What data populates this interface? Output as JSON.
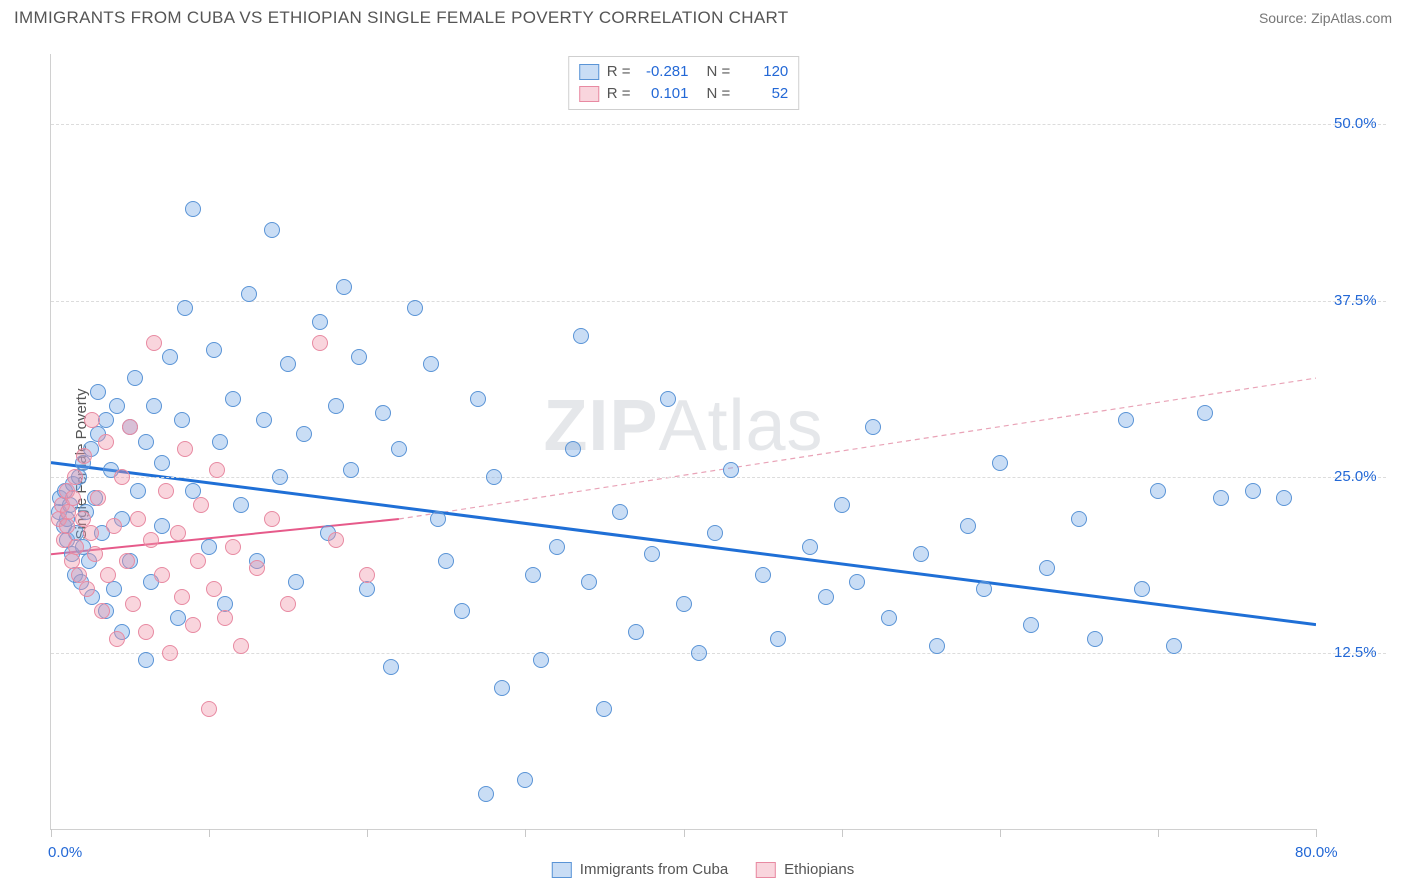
{
  "title": "IMMIGRANTS FROM CUBA VS ETHIOPIAN SINGLE FEMALE POVERTY CORRELATION CHART",
  "source_label": "Source: ZipAtlas.com",
  "ylabel": "Single Female Poverty",
  "watermark_a": "ZIP",
  "watermark_b": "Atlas",
  "chart": {
    "type": "scatter",
    "background_color": "#ffffff",
    "grid_color": "#dcdcdc",
    "axis_color": "#d0d0d0",
    "xlim": [
      0,
      80
    ],
    "ylim": [
      0,
      55
    ],
    "xmin_label": "0.0%",
    "xmax_label": "80.0%",
    "xlabel_color": "#2368d6",
    "y_gridlines": [
      12.5,
      25.0,
      37.5,
      50.0
    ],
    "y_tick_labels": [
      "12.5%",
      "25.0%",
      "37.5%",
      "50.0%"
    ],
    "ylabel_color": "#2368d6",
    "x_ticks": [
      0,
      10,
      20,
      30,
      40,
      50,
      60,
      70,
      80
    ],
    "marker_radius": 8,
    "marker_border_width": 1,
    "series": [
      {
        "key": "cuba",
        "label": "Immigrants from Cuba",
        "fill": "rgba(120,170,230,0.40)",
        "stroke": "#5a94d6",
        "R": "-0.281",
        "N": "120",
        "trend": {
          "x1": 0,
          "y1": 26,
          "x2": 80,
          "y2": 14.5,
          "color": "#1f6fd6",
          "width": 3,
          "dash": "none"
        },
        "trend_ext": null,
        "points": [
          [
            0.5,
            22.5
          ],
          [
            0.6,
            23.5
          ],
          [
            0.8,
            21.5
          ],
          [
            0.9,
            24
          ],
          [
            1,
            22
          ],
          [
            1,
            20.5
          ],
          [
            1.2,
            23
          ],
          [
            1.3,
            19.5
          ],
          [
            1.4,
            24.5
          ],
          [
            1.5,
            18
          ],
          [
            1.6,
            21
          ],
          [
            1.8,
            25
          ],
          [
            1.9,
            17.5
          ],
          [
            2,
            26
          ],
          [
            2,
            20
          ],
          [
            2.2,
            22.5
          ],
          [
            2.4,
            19
          ],
          [
            2.5,
            27
          ],
          [
            2.6,
            16.5
          ],
          [
            2.8,
            23.5
          ],
          [
            3,
            28
          ],
          [
            3,
            31
          ],
          [
            3.2,
            21
          ],
          [
            3.5,
            29
          ],
          [
            3.5,
            15.5
          ],
          [
            3.8,
            25.5
          ],
          [
            4,
            17
          ],
          [
            4.2,
            30
          ],
          [
            4.5,
            22
          ],
          [
            4.5,
            14
          ],
          [
            5,
            28.5
          ],
          [
            5,
            19
          ],
          [
            5.3,
            32
          ],
          [
            5.5,
            24
          ],
          [
            6,
            27.5
          ],
          [
            6,
            12
          ],
          [
            6.3,
            17.5
          ],
          [
            6.5,
            30
          ],
          [
            7,
            21.5
          ],
          [
            7,
            26
          ],
          [
            7.5,
            33.5
          ],
          [
            8,
            15
          ],
          [
            8.3,
            29
          ],
          [
            8.5,
            37
          ],
          [
            9,
            24
          ],
          [
            9,
            44
          ],
          [
            10,
            20
          ],
          [
            10.3,
            34
          ],
          [
            10.7,
            27.5
          ],
          [
            11,
            16
          ],
          [
            11.5,
            30.5
          ],
          [
            12,
            23
          ],
          [
            12.5,
            38
          ],
          [
            13,
            19
          ],
          [
            13.5,
            29
          ],
          [
            14,
            42.5
          ],
          [
            14.5,
            25
          ],
          [
            15,
            33
          ],
          [
            15.5,
            17.5
          ],
          [
            16,
            28
          ],
          [
            17,
            36
          ],
          [
            17.5,
            21
          ],
          [
            18,
            30
          ],
          [
            18.5,
            38.5
          ],
          [
            19,
            25.5
          ],
          [
            19.5,
            33.5
          ],
          [
            20,
            17
          ],
          [
            21,
            29.5
          ],
          [
            21.5,
            11.5
          ],
          [
            22,
            27
          ],
          [
            23,
            37
          ],
          [
            24,
            33
          ],
          [
            24.5,
            22
          ],
          [
            25,
            19
          ],
          [
            26,
            15.5
          ],
          [
            27,
            30.5
          ],
          [
            27.5,
            2.5
          ],
          [
            28,
            25
          ],
          [
            28.5,
            10
          ],
          [
            30,
            3.5
          ],
          [
            30.5,
            18
          ],
          [
            31,
            12
          ],
          [
            32,
            20
          ],
          [
            33,
            27
          ],
          [
            33.5,
            35
          ],
          [
            34,
            17.5
          ],
          [
            35,
            8.5
          ],
          [
            36,
            22.5
          ],
          [
            37,
            14
          ],
          [
            38,
            19.5
          ],
          [
            39,
            30.5
          ],
          [
            40,
            16
          ],
          [
            41,
            12.5
          ],
          [
            42,
            21
          ],
          [
            43,
            25.5
          ],
          [
            45,
            18
          ],
          [
            46,
            13.5
          ],
          [
            48,
            20
          ],
          [
            49,
            16.5
          ],
          [
            50,
            23
          ],
          [
            51,
            17.5
          ],
          [
            52,
            28.5
          ],
          [
            53,
            15
          ],
          [
            55,
            19.5
          ],
          [
            56,
            13
          ],
          [
            58,
            21.5
          ],
          [
            59,
            17
          ],
          [
            60,
            26
          ],
          [
            62,
            14.5
          ],
          [
            63,
            18.5
          ],
          [
            65,
            22
          ],
          [
            66,
            13.5
          ],
          [
            68,
            29
          ],
          [
            69,
            17
          ],
          [
            70,
            24
          ],
          [
            71,
            13
          ],
          [
            73,
            29.5
          ],
          [
            74,
            23.5
          ],
          [
            76,
            24
          ],
          [
            78,
            23.5
          ]
        ]
      },
      {
        "key": "ethiopia",
        "label": "Ethiopians",
        "fill": "rgba(240,150,170,0.40)",
        "stroke": "#e88aa2",
        "R": "0.101",
        "N": "52",
        "trend": {
          "x1": 0,
          "y1": 19.5,
          "x2": 22,
          "y2": 22,
          "color": "#e65a8a",
          "width": 2,
          "dash": "none"
        },
        "trend_ext": {
          "x1": 22,
          "y1": 22,
          "x2": 80,
          "y2": 32,
          "color": "#e9a3b7",
          "width": 1.2,
          "dash": "5,4"
        },
        "points": [
          [
            0.5,
            22
          ],
          [
            0.7,
            23
          ],
          [
            0.8,
            20.5
          ],
          [
            1,
            24
          ],
          [
            1,
            21.5
          ],
          [
            1.1,
            22.5
          ],
          [
            1.3,
            19
          ],
          [
            1.4,
            23.5
          ],
          [
            1.5,
            25
          ],
          [
            1.6,
            20
          ],
          [
            1.8,
            18
          ],
          [
            2,
            22
          ],
          [
            2.1,
            26.5
          ],
          [
            2.3,
            17
          ],
          [
            2.5,
            21
          ],
          [
            2.6,
            29
          ],
          [
            2.8,
            19.5
          ],
          [
            3,
            23.5
          ],
          [
            3.2,
            15.5
          ],
          [
            3.5,
            27.5
          ],
          [
            3.6,
            18
          ],
          [
            4,
            21.5
          ],
          [
            4.2,
            13.5
          ],
          [
            4.5,
            25
          ],
          [
            4.8,
            19
          ],
          [
            5,
            28.5
          ],
          [
            5.2,
            16
          ],
          [
            5.5,
            22
          ],
          [
            6,
            14
          ],
          [
            6.3,
            20.5
          ],
          [
            6.5,
            34.5
          ],
          [
            7,
            18
          ],
          [
            7.3,
            24
          ],
          [
            7.5,
            12.5
          ],
          [
            8,
            21
          ],
          [
            8.3,
            16.5
          ],
          [
            8.5,
            27
          ],
          [
            9,
            14.5
          ],
          [
            9.3,
            19
          ],
          [
            9.5,
            23
          ],
          [
            10,
            8.5
          ],
          [
            10.3,
            17
          ],
          [
            10.5,
            25.5
          ],
          [
            11,
            15
          ],
          [
            11.5,
            20
          ],
          [
            12,
            13
          ],
          [
            13,
            18.5
          ],
          [
            14,
            22
          ],
          [
            15,
            16
          ],
          [
            17,
            34.5
          ],
          [
            18,
            20.5
          ],
          [
            20,
            18
          ]
        ]
      }
    ]
  },
  "legend_top_prefix_R": "R =",
  "legend_top_prefix_N": "N =",
  "legend_bottom": [
    {
      "key": "cuba",
      "label": "Immigrants from Cuba"
    },
    {
      "key": "ethiopia",
      "label": "Ethiopians"
    }
  ]
}
